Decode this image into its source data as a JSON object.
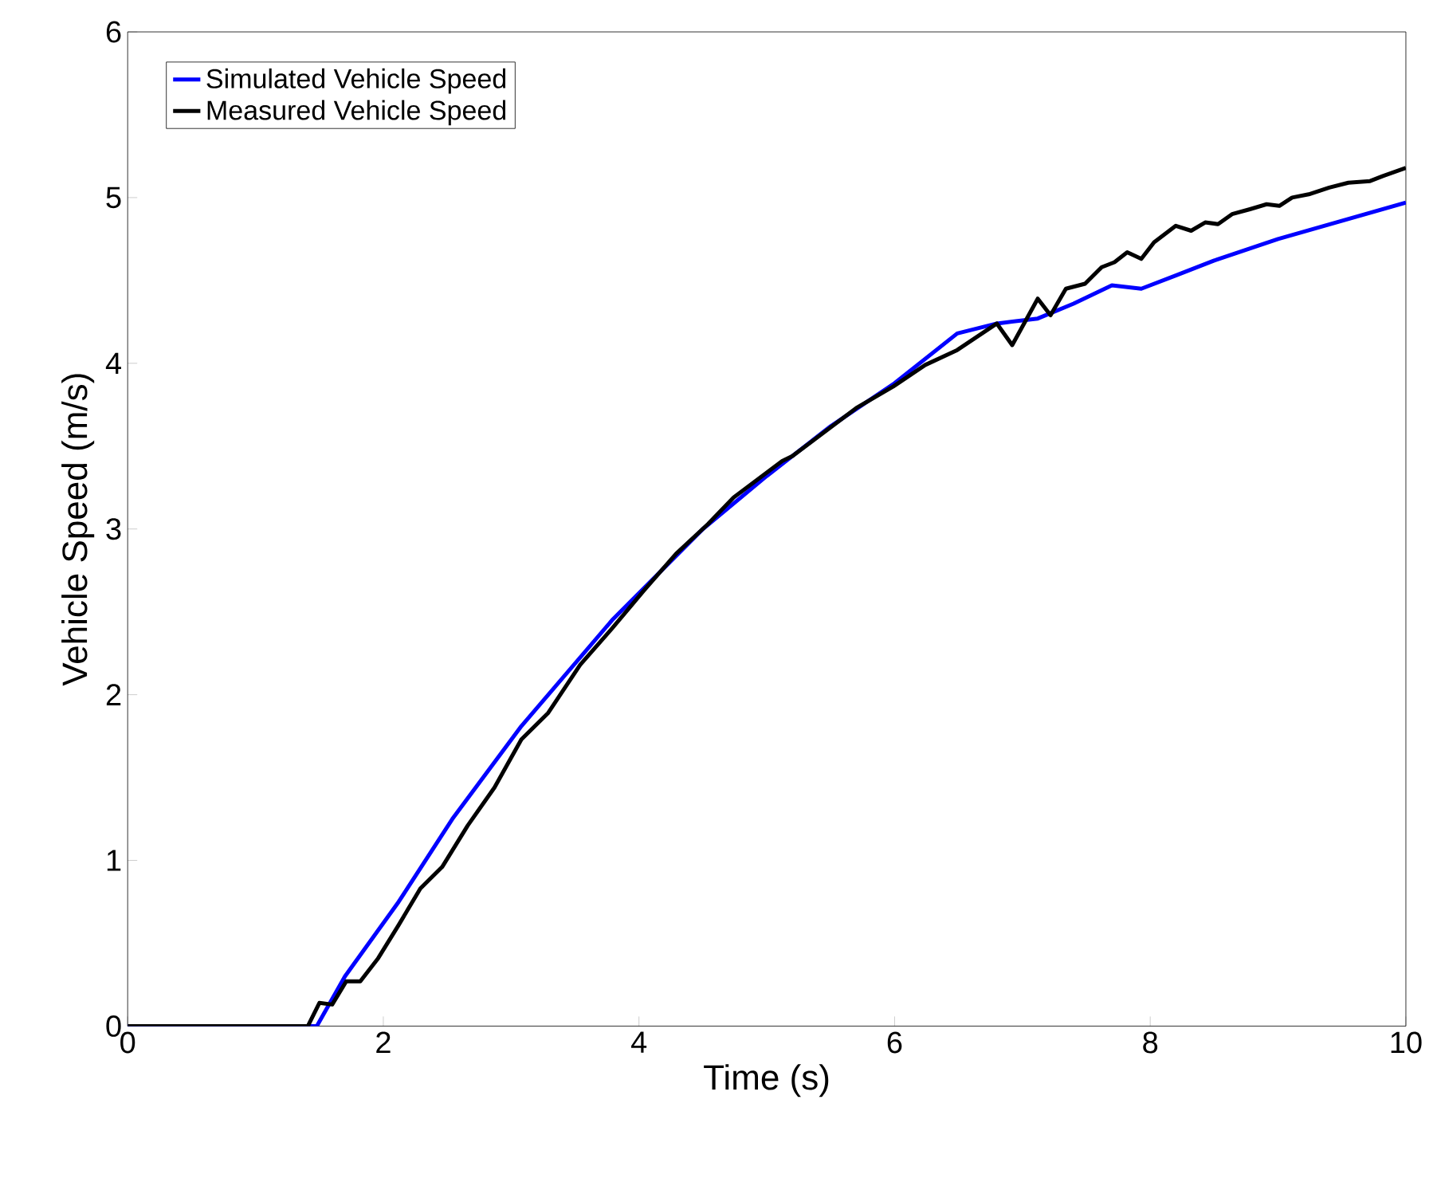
{
  "chart_data": {
    "type": "line",
    "xlabel": "Time (s)",
    "ylabel": "Vehicle Speed (m/s)",
    "xlim": [
      0,
      10
    ],
    "ylim": [
      0,
      6
    ],
    "xticks": [
      0,
      2,
      4,
      6,
      8,
      10
    ],
    "yticks": [
      0,
      1,
      2,
      3,
      4,
      5,
      6
    ],
    "grid": false,
    "legend": "top left",
    "marker": "none",
    "line_style": "solid",
    "series": [
      {
        "name": "Simulated Vehicle Speed",
        "color": "#0000ff",
        "x": [
          0,
          1.48,
          1.7,
          2.12,
          2.54,
          3.08,
          3.79,
          4.5,
          5,
          5.5,
          6,
          6.49,
          6.8,
          7.12,
          7.4,
          7.7,
          7.93,
          8.2,
          8.5,
          9,
          9.5,
          10
        ],
        "values": [
          0,
          0,
          0.3,
          0.75,
          1.25,
          1.81,
          2.45,
          3.0,
          3.32,
          3.62,
          3.88,
          4.18,
          4.24,
          4.27,
          4.36,
          4.47,
          4.45,
          4.53,
          4.62,
          4.75,
          4.86,
          4.97
        ]
      },
      {
        "name": "Measured Vehicle Speed",
        "color": "#000000",
        "x": [
          0,
          1.41,
          1.5,
          1.6,
          1.71,
          1.82,
          1.96,
          2.12,
          2.29,
          2.46,
          2.66,
          2.87,
          3.08,
          3.29,
          3.54,
          3.79,
          4.04,
          4.29,
          4.54,
          4.74,
          5.12,
          5.2,
          5.7,
          5.99,
          6.24,
          6.49,
          6.8,
          6.92,
          7.12,
          7.22,
          7.34,
          7.49,
          7.62,
          7.72,
          7.82,
          7.93,
          8.03,
          8.2,
          8.32,
          8.43,
          8.53,
          8.64,
          8.78,
          8.91,
          9.01,
          9.11,
          9.24,
          9.4,
          9.55,
          9.72,
          9.82,
          10
        ],
        "values": [
          0,
          0,
          0.14,
          0.13,
          0.27,
          0.27,
          0.41,
          0.61,
          0.83,
          0.96,
          1.21,
          1.44,
          1.73,
          1.89,
          2.18,
          2.4,
          2.63,
          2.85,
          3.03,
          3.19,
          3.41,
          3.44,
          3.73,
          3.86,
          3.99,
          4.08,
          4.24,
          4.11,
          4.39,
          4.29,
          4.45,
          4.48,
          4.58,
          4.61,
          4.67,
          4.63,
          4.73,
          4.83,
          4.8,
          4.85,
          4.84,
          4.9,
          4.93,
          4.96,
          4.95,
          5.0,
          5.02,
          5.06,
          5.09,
          5.1,
          5.13,
          5.18
        ]
      }
    ]
  }
}
